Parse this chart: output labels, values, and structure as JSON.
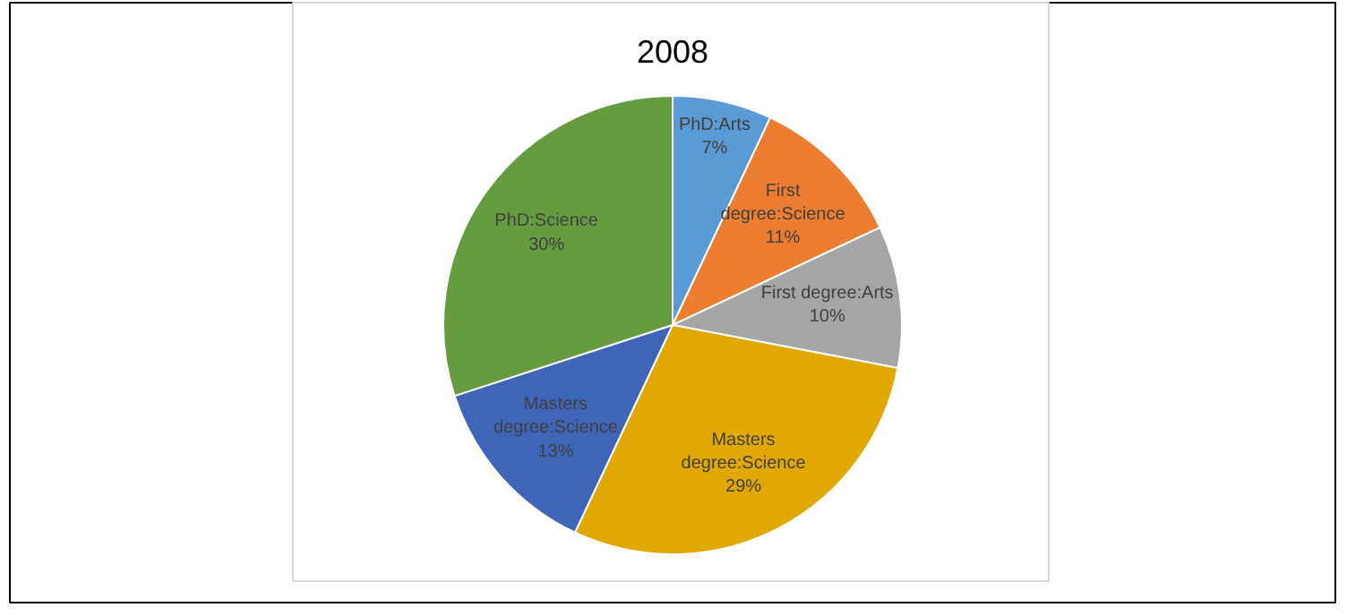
{
  "chart_data": {
    "type": "pie",
    "title": "2008",
    "categories": [
      "PhD:Arts",
      "First degree:Science",
      "First degree:Arts",
      "Masters degree:Science",
      "Masters degree:Science",
      "PhD:Science"
    ],
    "values": [
      7,
      11,
      10,
      29,
      13,
      30
    ],
    "colors": [
      "#5b9bd5",
      "#ed7d31",
      "#a5a5a5",
      "#e0a800",
      "#3f65b8",
      "#659c40"
    ],
    "value_labels": [
      "7%",
      "11%",
      "10%",
      "29%",
      "13%",
      "30%"
    ]
  }
}
